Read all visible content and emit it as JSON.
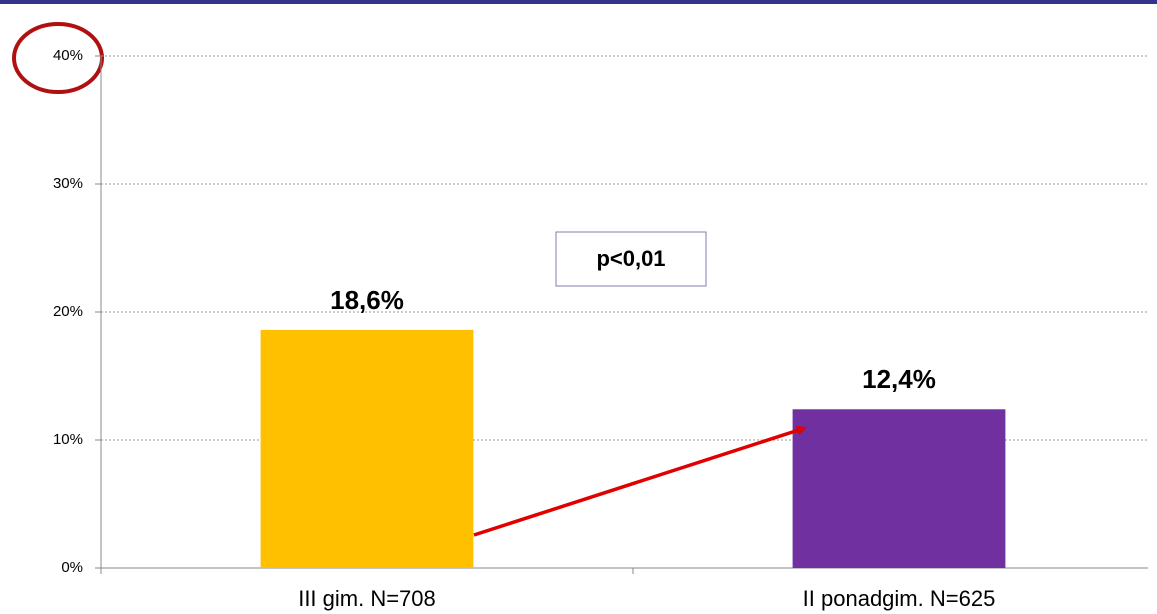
{
  "chart_data": {
    "type": "bar",
    "categories": [
      "III gim. N=708",
      "II ponadgim. N=625"
    ],
    "values": [
      18.6,
      12.4
    ],
    "value_labels": [
      "18,6%",
      "12,4%"
    ],
    "colors": [
      "#FFC000",
      "#7030A0"
    ],
    "ylim": [
      0,
      40
    ],
    "yticks": [
      {
        "value": 0,
        "label": "0%"
      },
      {
        "value": 10,
        "label": "10%"
      },
      {
        "value": 20,
        "label": "20%"
      },
      {
        "value": 30,
        "label": "30%"
      },
      {
        "value": 40,
        "label": "40%"
      }
    ],
    "grid": true,
    "annotation": "p<0,01"
  }
}
